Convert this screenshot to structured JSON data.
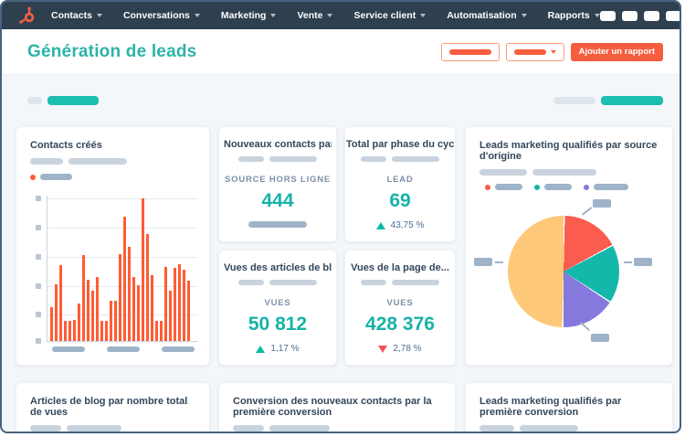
{
  "nav": {
    "items": [
      "Contacts",
      "Conversations",
      "Marketing",
      "Vente",
      "Service client",
      "Automatisation",
      "Rapports"
    ],
    "icon_placeholder_count": 4
  },
  "icons": {
    "logo": "hubspot-sprocket-icon",
    "nav_item_caret": "chevron-down-icon",
    "avatar_caret": "chevron-down-icon",
    "filter_button_caret": "caret-down-icon",
    "trend_up": "triangle-up-icon",
    "trend_down": "triangle-down-icon"
  },
  "header": {
    "title": "Génération de leads",
    "add_report_label": "Ajouter un rapport"
  },
  "cards": {
    "contacts_crees": {
      "title": "Contacts créés"
    },
    "nouveaux_contacts": {
      "title": "Nouveaux contacts par...",
      "metric_label": "SOURCE HORS LIGNE",
      "value": "444"
    },
    "total_phase": {
      "title": "Total par phase du cycle de...",
      "metric_label": "LEAD",
      "value": "69",
      "delta": "43,75 %",
      "direction": "up"
    },
    "vues_blog": {
      "title": "Vues des articles de blog",
      "metric_label": "VUES",
      "value": "50 812",
      "delta": "1,17 %",
      "direction": "up"
    },
    "vues_page": {
      "title": "Vues de la page de...",
      "metric_label": "VUES",
      "value": "428 376",
      "delta": "2,78 %",
      "direction": "down"
    },
    "leads_source": {
      "title": "Leads marketing qualifiés par source d'origine"
    },
    "articles_vues": {
      "title": "Articles de blog par nombre total de vues"
    },
    "conversion_contacts": {
      "title": "Conversion des nouveaux contacts par la première conversion"
    },
    "leads_conversion": {
      "title": "Leads marketing qualifiés par première conversion"
    }
  },
  "chart_data": [
    {
      "type": "bar",
      "title": "Contacts créés",
      "values": [
        24,
        40,
        53,
        14,
        14,
        15,
        26,
        60,
        43,
        35,
        45,
        14,
        14,
        28,
        28,
        61,
        87,
        66,
        45,
        39,
        100,
        75,
        46,
        14,
        14,
        52,
        35,
        51,
        54,
        50,
        42
      ],
      "categories": [
        "(placeholder-1)",
        "(placeholder-2)",
        "(placeholder-3)"
      ],
      "xlabel": "",
      "ylabel": "",
      "ylim": [
        0,
        100
      ],
      "grid": true,
      "bar_color": "#ff5c35",
      "note": "axis tick and legend labels are shown as redacted placeholder blocks"
    },
    {
      "type": "pie",
      "title": "Leads marketing qualifiés par source d'origine",
      "slices": [
        {
          "name": "segment-1",
          "value": 17,
          "color": "#fa5c4f"
        },
        {
          "name": "segment-2",
          "value": 17,
          "color": "#14b8ab"
        },
        {
          "name": "segment-3",
          "value": 16,
          "color": "#8579dd"
        },
        {
          "name": "segment-4",
          "value": 50,
          "color": "#fdc878"
        }
      ],
      "start_angle": "top",
      "direction": "clockwise",
      "legend_position": "top",
      "legend_placeholder_entries": 3,
      "note": "slice and legend labels are shown as redacted placeholder blocks"
    }
  ],
  "colors": {
    "nav_bg": "#2e3f50",
    "accent_orange": "#f65d3f",
    "accent_teal": "#1cbeb1",
    "title_teal": "#2db3a8",
    "metric_teal": "#16b3a7",
    "trend_up": "#00bda5",
    "trend_down": "#f2545b",
    "card_title": "#33475b",
    "page_bg": "#f4f7fa"
  }
}
